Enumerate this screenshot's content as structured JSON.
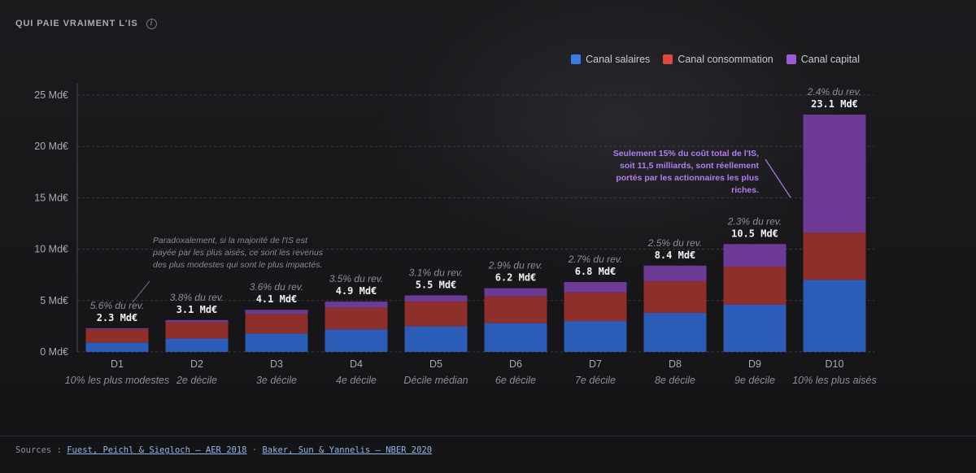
{
  "header": {
    "title": "QUI PAIE VRAIMENT L'IS",
    "info_icon": "info-icon"
  },
  "legend": [
    {
      "label": "Canal salaires",
      "color": "#3b7be3"
    },
    {
      "label": "Canal consommation",
      "color": "#e0483c"
    },
    {
      "label": "Canal capital",
      "color": "#a05ad8"
    }
  ],
  "chart_data": {
    "type": "bar",
    "stacked": true,
    "title": "QUI PAIE VRAIMENT L'IS",
    "categories": [
      "D1",
      "D2",
      "D3",
      "D4",
      "D5",
      "D6",
      "D7",
      "D8",
      "D9",
      "D10"
    ],
    "sublabels": [
      "10% les plus modestes",
      "2e décile",
      "3e décile",
      "4e décile",
      "Décile médian",
      "6e décile",
      "7e décile",
      "8e décile",
      "9e décile",
      "10% les plus aisés"
    ],
    "series": [
      {
        "name": "Canal salaires",
        "color": "#2a5cb8",
        "values": [
          0.9,
          1.3,
          1.8,
          2.2,
          2.5,
          2.8,
          3.0,
          3.8,
          4.6,
          7.0
        ]
      },
      {
        "name": "Canal consommation",
        "color": "#8e2f2b",
        "values": [
          1.3,
          1.6,
          1.9,
          2.1,
          2.4,
          2.6,
          2.8,
          3.1,
          3.7,
          4.6
        ]
      },
      {
        "name": "Canal capital",
        "color": "#6d3b96",
        "values": [
          0.1,
          0.2,
          0.4,
          0.6,
          0.6,
          0.8,
          1.0,
          1.5,
          2.2,
          11.5
        ]
      }
    ],
    "totals": [
      "2.3 Md€",
      "3.1 Md€",
      "4.1 Md€",
      "4.9 Md€",
      "5.5 Md€",
      "6.2 Md€",
      "6.8 Md€",
      "8.4 Md€",
      "10.5 Md€",
      "23.1 Md€"
    ],
    "total_values": [
      2.3,
      3.1,
      4.1,
      4.9,
      5.5,
      6.2,
      6.8,
      8.4,
      10.5,
      23.1
    ],
    "share_labels": [
      "5.6% du rev.",
      "3.8% du rev.",
      "3.6% du rev.",
      "3.5% du rev.",
      "3.1% du rev.",
      "2.9% du rev.",
      "2.7% du rev.",
      "2.5% du rev.",
      "2.3% du rev.",
      "2.4% du rev."
    ],
    "yticks": [
      0,
      5,
      10,
      15,
      20,
      25
    ],
    "ytick_labels": [
      "0 Md€",
      "5 Md€",
      "10 Md€",
      "15 Md€",
      "20 Md€",
      "25 Md€"
    ],
    "ylim": [
      0,
      25
    ],
    "grid": true,
    "legend_position": "top-right",
    "annotations": [
      {
        "target": "D1",
        "lines": [
          "Paradoxalement, si la majorité de l'IS est",
          "payée par les plus aisés, ce sont les revenus",
          "des plus modestes qui sont le plus impactés."
        ],
        "color": "#8a8a92"
      },
      {
        "target": "D10",
        "lines": [
          "Seulement 15% du coût total de l'IS,",
          "soit 11,5 milliards, sont réellement",
          "portés par les actionnaires les plus",
          "riches."
        ],
        "color": "#b57cf0"
      }
    ]
  },
  "sources": {
    "prefix": "Sources :",
    "links": [
      "Fuest, Peichl & Siegloch — AER 2018",
      "Baker, Sun & Yannelis — NBER 2020"
    ],
    "separator": "·"
  }
}
